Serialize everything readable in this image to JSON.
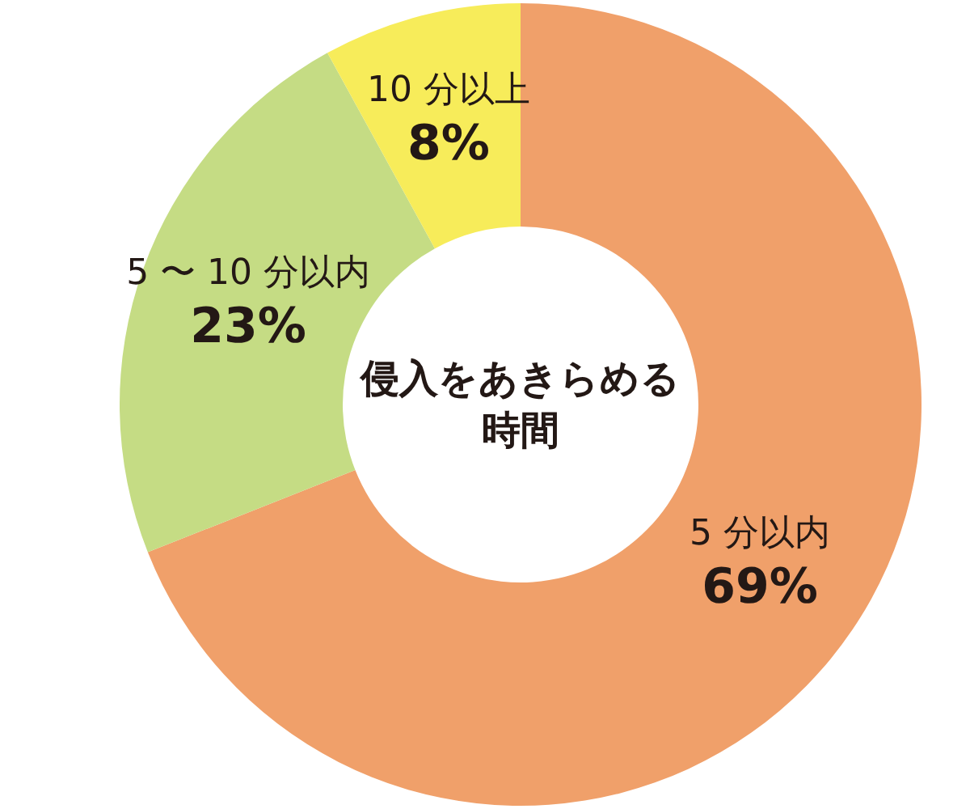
{
  "chart_data": {
    "type": "donut",
    "title": "侵入をあきらめる時間",
    "categories": [
      "5 分以内",
      "5 〜 10 分以内",
      "10 分以上"
    ],
    "values": [
      69,
      23,
      8
    ],
    "colors": [
      "#f0a06a",
      "#c5dc84",
      "#f7ec5a"
    ],
    "value_labels": [
      "69%",
      "23%",
      "8%"
    ]
  }
}
